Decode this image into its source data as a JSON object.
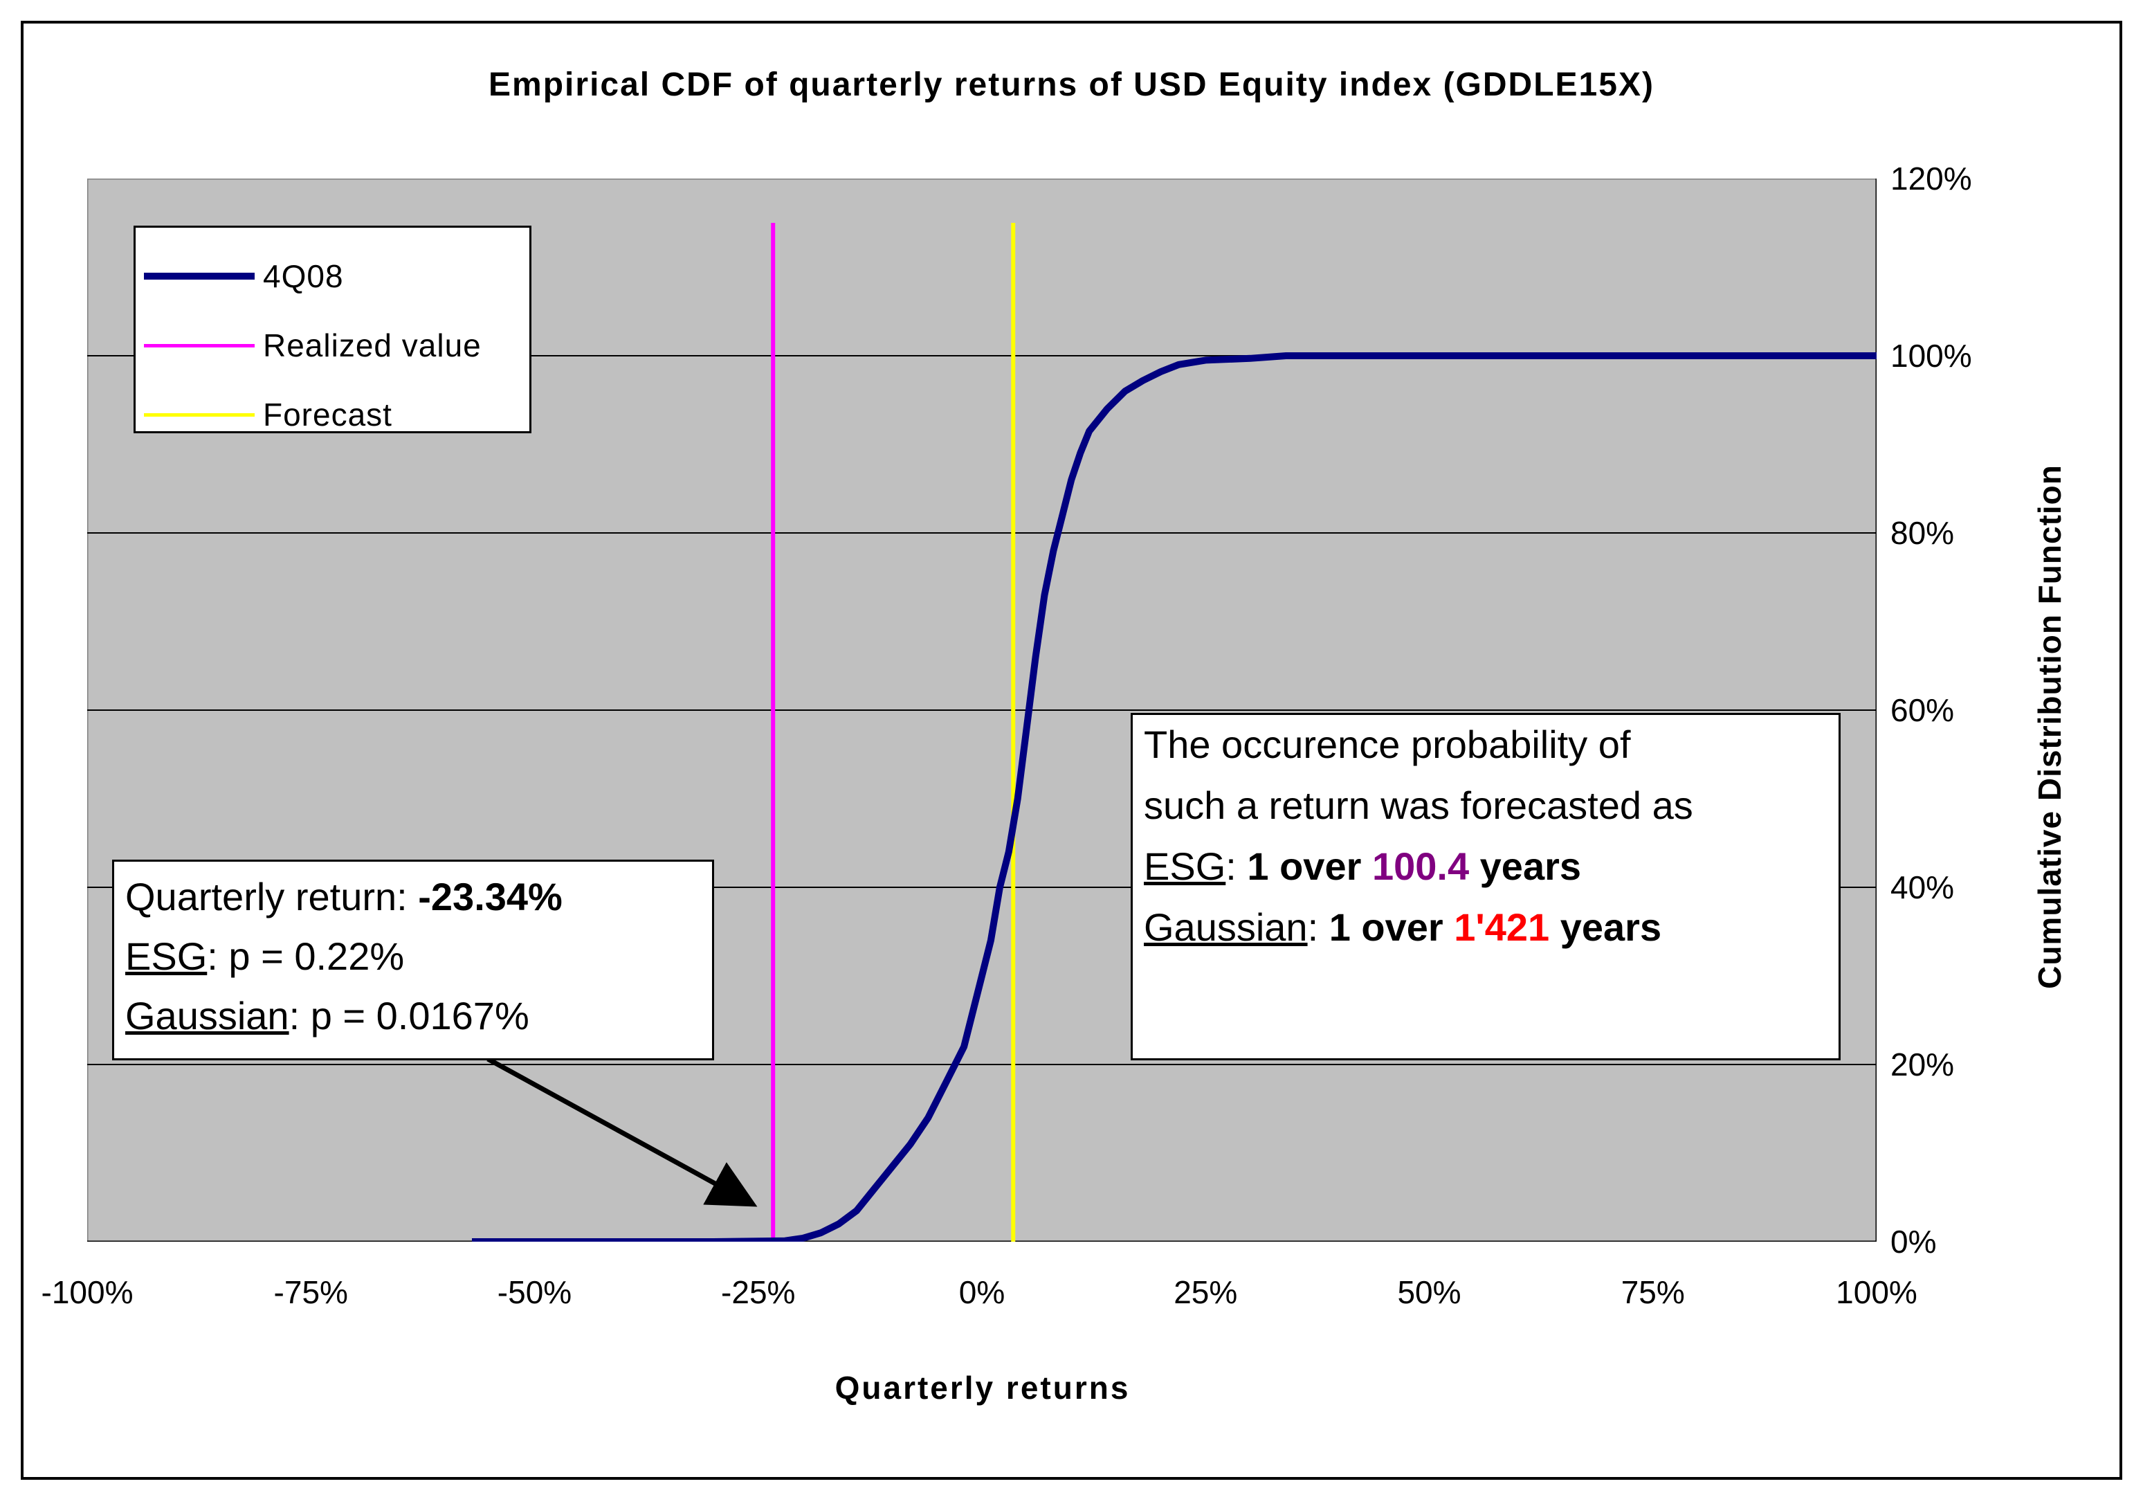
{
  "chart_data": {
    "type": "line",
    "title": "Empirical CDF of quarterly returns of USD Equity index (GDDLE15X)",
    "xlabel": "Quarterly returns",
    "ylabel": "Cumulative Distribution Function",
    "xlim": [
      -1.0,
      1.0
    ],
    "ylim": [
      0,
      1.2
    ],
    "x_ticks": [
      "-100%",
      "-75%",
      "-50%",
      "-25%",
      "0%",
      "25%",
      "50%",
      "75%",
      "100%"
    ],
    "y_ticks": [
      "0%",
      "20%",
      "40%",
      "60%",
      "80%",
      "100%",
      "120%"
    ],
    "grid": "horizontal",
    "legend_position": "top-left",
    "series": [
      {
        "name": "4Q08",
        "color": "#000080",
        "x": [
          -0.57,
          -0.3,
          -0.22,
          -0.2,
          -0.18,
          -0.16,
          -0.14,
          -0.12,
          -0.1,
          -0.08,
          -0.06,
          -0.04,
          -0.02,
          0.0,
          0.01,
          0.02,
          0.03,
          0.04,
          0.05,
          0.06,
          0.07,
          0.08,
          0.09,
          0.1,
          0.11,
          0.12,
          0.14,
          0.16,
          0.18,
          0.2,
          0.22,
          0.25,
          0.3,
          0.34,
          0.4,
          1.0
        ],
        "y": [
          0.0,
          0.0,
          0.001,
          0.004,
          0.01,
          0.02,
          0.035,
          0.06,
          0.085,
          0.11,
          0.14,
          0.18,
          0.22,
          0.3,
          0.34,
          0.4,
          0.44,
          0.5,
          0.58,
          0.66,
          0.73,
          0.78,
          0.82,
          0.86,
          0.89,
          0.915,
          0.94,
          0.96,
          0.972,
          0.982,
          0.99,
          0.995,
          0.997,
          1.0,
          1.0,
          1.0
        ]
      },
      {
        "name": "Realized value",
        "color": "#ff00ff",
        "x_value": -0.2334
      },
      {
        "name": "Forecast",
        "color": "#ffff00",
        "x_value": 0.035
      }
    ],
    "vertical_line_top": 1.15,
    "plot_background": "#c0c0c0",
    "annotations": {
      "left": {
        "line1_label": "Quarterly return: ",
        "line1_value": "-23.34%",
        "line2_label": "ESG",
        "line2_rest": ": p = 0.22%",
        "line3_label": "Gaussian",
        "line3_rest": ": p = 0.0167%"
      },
      "right": {
        "line1": "The occurence probability of",
        "line2": "such a return was forecasted as",
        "line3_label": "ESG",
        "line3_a": ": ",
        "line3_b": "1 over ",
        "line3_value": "100.4",
        "line3_value_color": "#800080",
        "line3_c": " years",
        "line4_label": "Gaussian",
        "line4_a": ": ",
        "line4_b": "1 over ",
        "line4_value": "1'421",
        "line4_value_color": "#ff0000",
        "line4_c": " years"
      },
      "arrow_target": {
        "x": -0.27,
        "y": 0.05
      }
    }
  }
}
